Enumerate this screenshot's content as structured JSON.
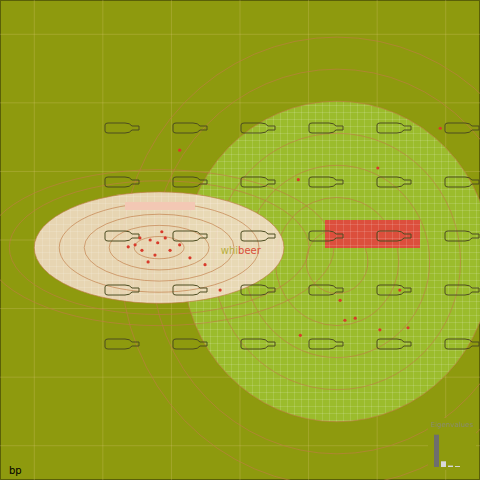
{
  "chart_data": {
    "type": "scatter",
    "corner_label": "bp",
    "xlim": [
      -3.5,
      3.5
    ],
    "ylim": [
      -3.5,
      3.5
    ],
    "xticks": [
      -3,
      -2,
      -1,
      0,
      1,
      2,
      3
    ],
    "yticks": [
      -3,
      -2,
      -1,
      0,
      1,
      2,
      3
    ],
    "grid": true,
    "tick_labels": false,
    "series": [
      {
        "name": "whi",
        "color": "#b8b040",
        "x": [
          -1.53,
          -1.43,
          -1.31,
          -1.2,
          -1.09,
          -1.46,
          -1.02,
          -1.24,
          -1.63,
          -0.88,
          -1.14,
          -1.34,
          -0.73,
          -0.51
        ],
        "values": [
          -0.07,
          -0.15,
          0,
          -0.04,
          0.03,
          0.03,
          -0.15,
          -0.22,
          -0.1,
          -0.07,
          0.12,
          -0.32,
          -0.26,
          -0.36
        ]
      },
      {
        "name": "beer",
        "color": "#d8503a",
        "x": [
          1.53,
          1.68,
          2.04,
          0.88,
          2.45,
          1.46,
          2.01,
          2.92,
          -0.88,
          0.85,
          -0.29,
          2.33
        ],
        "values": [
          -1.17,
          -1.14,
          -1.31,
          -1.39,
          -1.28,
          -0.88,
          1.05,
          1.63,
          1.31,
          0.88,
          -0.73,
          -0.73
        ]
      }
    ],
    "eigenvalues": {
      "title": "Eigenvalues",
      "values": [
        3.4,
        0.6,
        0.15,
        0.1
      ],
      "ylim": [
        0,
        4
      ]
    }
  }
}
